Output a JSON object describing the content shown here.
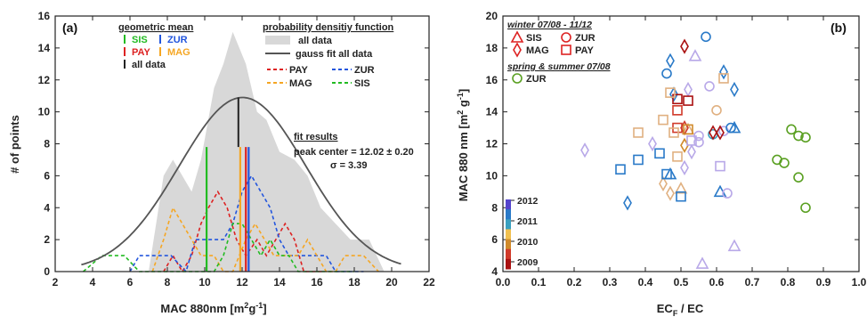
{
  "colors": {
    "SIS": "#22bb22",
    "PAY": "#dd2222",
    "MAG": "#f5a623",
    "ZUR": "#2255dd",
    "all": "#222222",
    "fill_all": "#d8d8d8",
    "gauss": "#555555",
    "ZUR_summer": "#5aa022"
  },
  "panel_a": {
    "label": "(a)",
    "xlabel": "MAC 880nm [m",
    "xlabel_sup1": "2",
    "xlabel_mid": "g",
    "xlabel_sup2": "-1",
    "xlabel_end": "]",
    "ylabel": "# of points",
    "legend_gm_title": "geometric mean",
    "legend_gm": [
      "SIS",
      "ZUR",
      "PAY",
      "MAG",
      "all data"
    ],
    "legend_pdf_title": "probability densitiy function",
    "legend_pdf": [
      "all data",
      "gauss fit all data",
      "PAY",
      "ZUR",
      "MAG",
      "SIS"
    ],
    "fit_title": "fit results",
    "fit_line1": "peak center = 12.02 ± 0.20",
    "fit_line2": "σ = 3.39"
  },
  "panel_b": {
    "label": "(b)",
    "xlabel": "EC",
    "xlabel_sub": "F",
    "xlabel_end": " / EC",
    "ylabel": "MAC 880 nm [m",
    "ylabel_sup1": "2",
    "ylabel_mid": " g",
    "ylabel_sup2": "-1",
    "ylabel_end": "]",
    "legend_winter_title": "winter 07/08 - 11/12",
    "legend_winter": [
      "SIS",
      "ZUR",
      "MAG",
      "PAY"
    ],
    "legend_summer_title": "spring & summer 07/08",
    "legend_summer": [
      "ZUR"
    ],
    "colorbar_labels": [
      "2012",
      "2011",
      "2010",
      "2009"
    ]
  },
  "chart_data": [
    {
      "type": "line",
      "title": "",
      "xlabel": "MAC 880nm [m2g-1]",
      "ylabel": "# of points",
      "xlim": [
        2,
        22
      ],
      "ylim": [
        0,
        16
      ],
      "xticks": [
        2,
        4,
        6,
        8,
        10,
        12,
        14,
        16,
        18,
        20,
        22
      ],
      "yticks": [
        0,
        2,
        4,
        6,
        8,
        10,
        12,
        14,
        16
      ],
      "gauss_fit": {
        "center": 12.02,
        "center_err": 0.2,
        "sigma": 3.39,
        "amplitude": 10.9
      },
      "all_data_area": {
        "x": [
          3.5,
          5,
          7,
          7.8,
          8.3,
          8.8,
          9.3,
          9.8,
          10.5,
          11,
          11.5,
          12.2,
          12.8,
          13.3,
          14,
          14.8,
          15.5,
          16.2,
          17,
          17.8,
          18.8,
          19.6,
          19.6,
          3.5
        ],
        "y": [
          0,
          0,
          0,
          6,
          7,
          6,
          5,
          7,
          11.5,
          13,
          15,
          13,
          10,
          9.5,
          7.5,
          7,
          6,
          4,
          3,
          2,
          2,
          0,
          0,
          0
        ]
      },
      "geometric_means": [
        {
          "name": "SIS",
          "x": 10.1,
          "y": 7.8
        },
        {
          "name": "ZUR",
          "x": 12.35,
          "y": 7.8
        },
        {
          "name": "PAY",
          "x": 12.2,
          "y": 7.8
        },
        {
          "name": "MAG",
          "x": 11.9,
          "y": 7.8
        },
        {
          "name": "all data",
          "x": 11.8,
          "y": 10.9
        }
      ],
      "series": [
        {
          "name": "PAY",
          "x": [
            7.8,
            8.3,
            8.8,
            9.3,
            9.8,
            10.2,
            10.7,
            11.2,
            11.7,
            12.2,
            12.8,
            13.3,
            13.8,
            14.3,
            14.8,
            15.3,
            15.8,
            16.3
          ],
          "y": [
            0,
            1,
            0,
            1,
            3,
            4,
            5,
            4,
            2,
            1,
            2,
            1,
            2,
            3,
            2,
            0,
            0,
            0
          ]
        },
        {
          "name": "ZUR",
          "x": [
            6,
            6.5,
            7,
            8.2,
            9,
            9.5,
            10,
            11,
            11.5,
            12,
            12.5,
            13,
            13.5,
            14,
            14.5,
            15,
            16,
            16.5,
            17,
            17.5,
            18,
            18.5
          ],
          "y": [
            0,
            1,
            1,
            1,
            0,
            2,
            2,
            2,
            3,
            5,
            6,
            5,
            4,
            2,
            1,
            1,
            1,
            1,
            0,
            0,
            0,
            0
          ]
        },
        {
          "name": "MAG",
          "x": [
            7.2,
            7.8,
            8.3,
            8.8,
            9.3,
            9.8,
            10.5,
            11,
            11.5,
            12.2,
            12.7,
            13.2,
            13.7,
            14.3,
            15,
            15.5,
            16,
            16.5,
            17,
            17.5,
            18,
            18.5,
            19.3
          ],
          "y": [
            0,
            2,
            4,
            3,
            2,
            1,
            1,
            0,
            0,
            2,
            3,
            2,
            1,
            1,
            1,
            2,
            1,
            0,
            0,
            1,
            1,
            1,
            0
          ]
        },
        {
          "name": "SIS",
          "x": [
            3.5,
            4.5,
            5,
            5.7,
            6.5,
            7.5,
            8.5,
            9.5,
            10.5,
            11,
            11.5,
            12,
            12.5,
            13,
            13.5,
            14,
            14.5,
            15,
            15.5,
            16,
            17,
            18
          ],
          "y": [
            0,
            1,
            1,
            1,
            0,
            0,
            0,
            0,
            0,
            1,
            3,
            3,
            2,
            1,
            2,
            1,
            1,
            0,
            0,
            0,
            0,
            0
          ]
        }
      ]
    },
    {
      "type": "scatter",
      "title": "",
      "xlabel": "ECF / EC",
      "ylabel": "MAC 880 nm [m2 g-1]",
      "xlim": [
        0.0,
        1.0
      ],
      "ylim": [
        4,
        20
      ],
      "xticks": [
        0.0,
        0.1,
        0.2,
        0.3,
        0.4,
        0.5,
        0.6,
        0.7,
        0.8,
        0.9,
        1.0
      ],
      "yticks": [
        4,
        6,
        8,
        10,
        12,
        14,
        16,
        18,
        20
      ],
      "colorbar": {
        "labels": [
          "2012",
          "2011",
          "2010",
          "2009"
        ],
        "colors": [
          "#5544cc",
          "#2a7ac8",
          "#3aa0c0",
          "#f0c050",
          "#d08a2a",
          "#d03a2a",
          "#aa1111"
        ]
      },
      "series": [
        {
          "name": "SIS",
          "marker": "triangle",
          "points": [
            {
              "x": 0.54,
              "y": 17.5,
              "color": "#b8a8e8"
            },
            {
              "x": 0.56,
              "y": 4.5,
              "color": "#b8a8e8"
            },
            {
              "x": 0.65,
              "y": 5.6,
              "color": "#b8a8e8"
            },
            {
              "x": 0.61,
              "y": 9.0,
              "color": "#2a7ac8"
            },
            {
              "x": 0.65,
              "y": 13.0,
              "color": "#2a7ac8"
            },
            {
              "x": 0.52,
              "y": 12.9,
              "color": "#e0b080"
            },
            {
              "x": 0.47,
              "y": 10.1,
              "color": "#2a7ac8"
            },
            {
              "x": 0.5,
              "y": 9.2,
              "color": "#e0b080"
            }
          ]
        },
        {
          "name": "ZUR",
          "marker": "circle",
          "points": [
            {
              "x": 0.57,
              "y": 18.7,
              "color": "#2a7ac8"
            },
            {
              "x": 0.46,
              "y": 16.4,
              "color": "#2a7ac8"
            },
            {
              "x": 0.58,
              "y": 15.6,
              "color": "#b8a8e8"
            },
            {
              "x": 0.55,
              "y": 12.1,
              "color": "#b8a8e8"
            },
            {
              "x": 0.6,
              "y": 14.1,
              "color": "#e0b080"
            },
            {
              "x": 0.62,
              "y": 12.8,
              "color": "#b8a8e8"
            },
            {
              "x": 0.64,
              "y": 13.0,
              "color": "#2a7ac8"
            },
            {
              "x": 0.59,
              "y": 12.6,
              "color": "#3aa0c0"
            },
            {
              "x": 0.63,
              "y": 8.9,
              "color": "#b8a8e8"
            },
            {
              "x": 0.55,
              "y": 12.5,
              "color": "#b8a8e8"
            }
          ]
        },
        {
          "name": "MAG",
          "marker": "diamond",
          "points": [
            {
              "x": 0.51,
              "y": 18.1,
              "color": "#aa1111"
            },
            {
              "x": 0.47,
              "y": 17.2,
              "color": "#2a7ac8"
            },
            {
              "x": 0.52,
              "y": 15.4,
              "color": "#b8a8e8"
            },
            {
              "x": 0.48,
              "y": 15.1,
              "color": "#2a7ac8"
            },
            {
              "x": 0.62,
              "y": 16.5,
              "color": "#2a7ac8"
            },
            {
              "x": 0.65,
              "y": 15.4,
              "color": "#2a7ac8"
            },
            {
              "x": 0.23,
              "y": 11.6,
              "color": "#b8a8e8"
            },
            {
              "x": 0.42,
              "y": 12.0,
              "color": "#b8a8e8"
            },
            {
              "x": 0.51,
              "y": 13.0,
              "color": "#d03a2a"
            },
            {
              "x": 0.51,
              "y": 11.9,
              "color": "#d08a2a"
            },
            {
              "x": 0.45,
              "y": 9.5,
              "color": "#e0b080"
            },
            {
              "x": 0.47,
              "y": 8.9,
              "color": "#e0b080"
            },
            {
              "x": 0.51,
              "y": 10.5,
              "color": "#b8a8e8"
            },
            {
              "x": 0.35,
              "y": 8.3,
              "color": "#2a7ac8"
            },
            {
              "x": 0.59,
              "y": 12.7,
              "color": "#aa1111"
            },
            {
              "x": 0.61,
              "y": 12.7,
              "color": "#aa1111"
            },
            {
              "x": 0.53,
              "y": 11.5,
              "color": "#b8a8e8"
            }
          ]
        },
        {
          "name": "PAY",
          "marker": "square",
          "points": [
            {
              "x": 0.49,
              "y": 14.8,
              "color": "#aa1111"
            },
            {
              "x": 0.52,
              "y": 14.7,
              "color": "#aa1111"
            },
            {
              "x": 0.49,
              "y": 14.1,
              "color": "#d03a2a"
            },
            {
              "x": 0.45,
              "y": 13.5,
              "color": "#e0b080"
            },
            {
              "x": 0.49,
              "y": 13.0,
              "color": "#d03a2a"
            },
            {
              "x": 0.47,
              "y": 15.2,
              "color": "#e0b080"
            },
            {
              "x": 0.52,
              "y": 12.9,
              "color": "#d08a2a"
            },
            {
              "x": 0.44,
              "y": 11.4,
              "color": "#2a7ac8"
            },
            {
              "x": 0.38,
              "y": 11.0,
              "color": "#2a7ac8"
            },
            {
              "x": 0.33,
              "y": 10.4,
              "color": "#2a7ac8"
            },
            {
              "x": 0.49,
              "y": 11.2,
              "color": "#e0b080"
            },
            {
              "x": 0.61,
              "y": 10.6,
              "color": "#b8a8e8"
            },
            {
              "x": 0.5,
              "y": 8.7,
              "color": "#2a7ac8"
            },
            {
              "x": 0.46,
              "y": 10.1,
              "color": "#2a7ac8"
            },
            {
              "x": 0.38,
              "y": 12.7,
              "color": "#e0b080"
            },
            {
              "x": 0.62,
              "y": 16.1,
              "color": "#e0b080"
            },
            {
              "x": 0.48,
              "y": 12.7,
              "color": "#e0b080"
            },
            {
              "x": 0.53,
              "y": 12.2,
              "color": "#b8a8e8"
            }
          ]
        },
        {
          "name": "ZUR",
          "group": "spring & summer 07/08",
          "marker": "circle",
          "points": [
            {
              "x": 0.77,
              "y": 11.0,
              "color": "#5aa022"
            },
            {
              "x": 0.79,
              "y": 10.8,
              "color": "#5aa022"
            },
            {
              "x": 0.81,
              "y": 12.9,
              "color": "#5aa022"
            },
            {
              "x": 0.83,
              "y": 12.5,
              "color": "#5aa022"
            },
            {
              "x": 0.85,
              "y": 12.4,
              "color": "#5aa022"
            },
            {
              "x": 0.83,
              "y": 9.9,
              "color": "#5aa022"
            },
            {
              "x": 0.85,
              "y": 8.0,
              "color": "#5aa022"
            }
          ]
        }
      ]
    }
  ]
}
